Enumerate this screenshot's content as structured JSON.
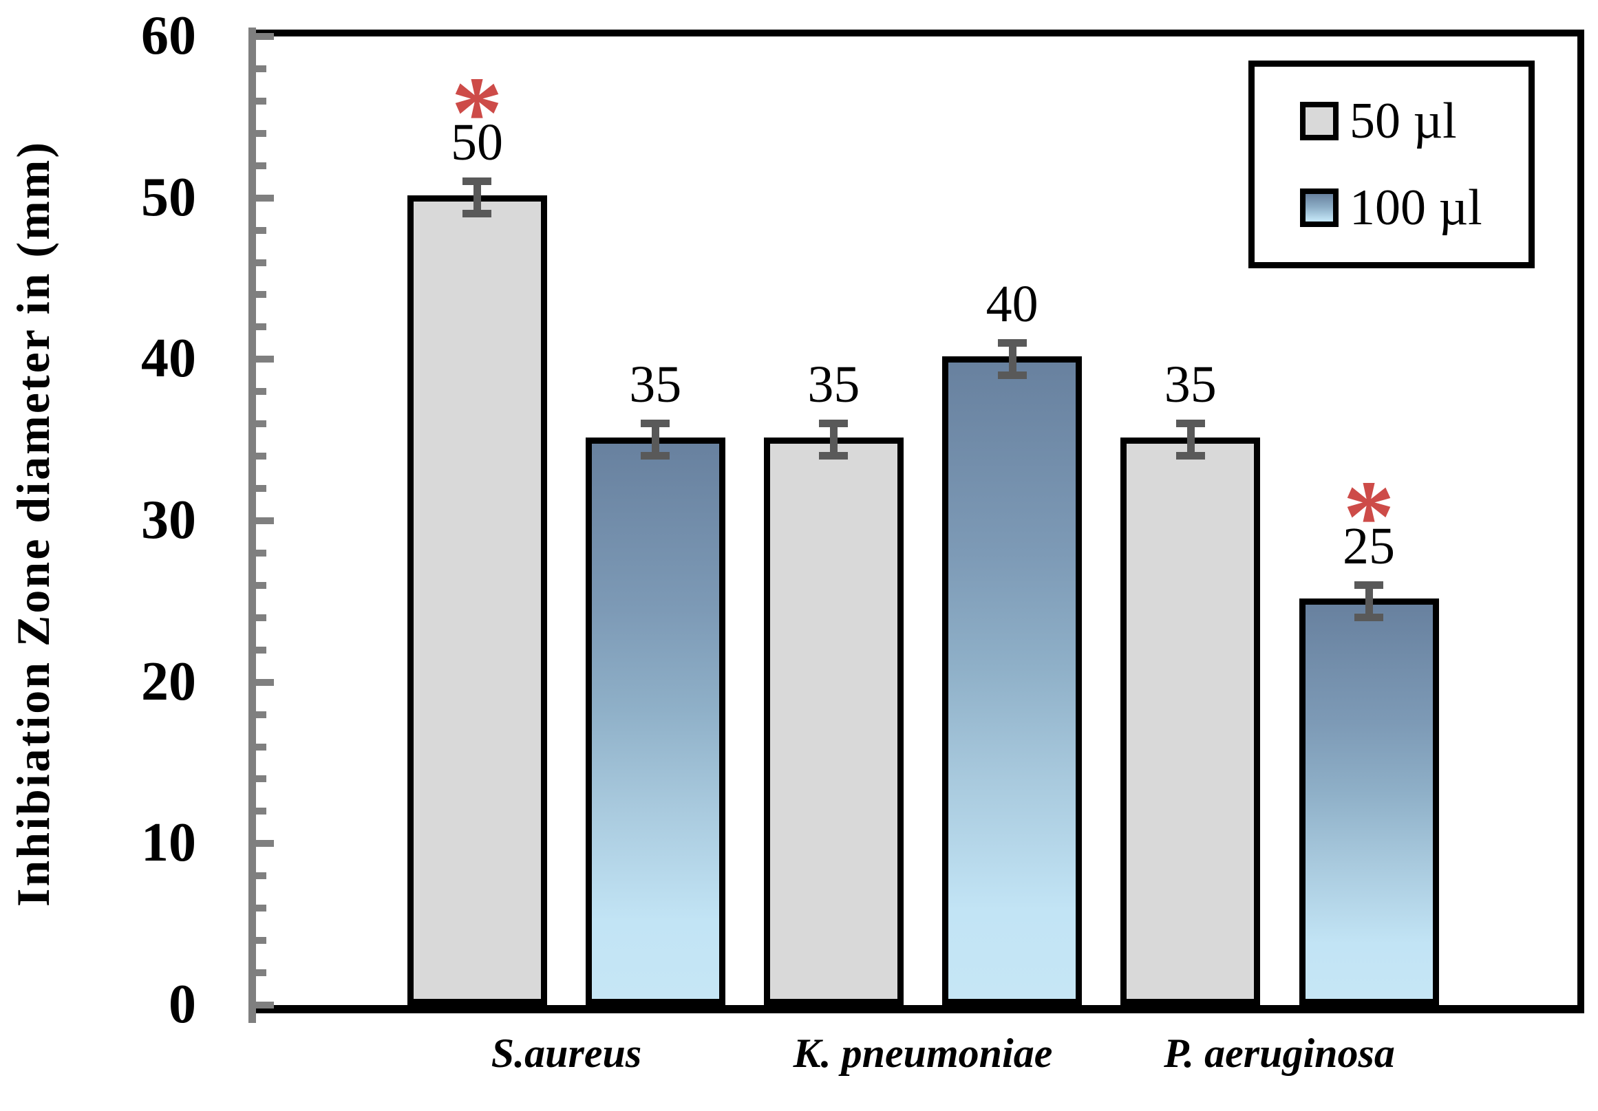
{
  "figure": {
    "background": "#ffffff",
    "frame_color": "#000000",
    "axis_color": "#7f7f7f",
    "bar_border_color": "#000000"
  },
  "chart_data": {
    "type": "bar",
    "title": "",
    "xlabel": "",
    "ylabel": "Inhibiation Zone diameter in (mm)",
    "categories": [
      "S.aureus",
      "K. pneumoniae",
      "P. aeruginosa"
    ],
    "series": [
      {
        "name": "50 µl",
        "values": [
          50,
          35,
          35
        ],
        "fill": "#d9d9d9",
        "significant": [
          true,
          false,
          false
        ]
      },
      {
        "name": "100 µl",
        "values": [
          35,
          40,
          25
        ],
        "fill_gradient": [
          "#68819f",
          "#8fb0c8",
          "#c2e4f5"
        ],
        "significant": [
          false,
          false,
          true
        ]
      }
    ],
    "error_bars": {
      "value": 1,
      "color": "#595959"
    },
    "ylim": [
      0,
      60
    ],
    "yticks": [
      0,
      10,
      20,
      30,
      40,
      50,
      60
    ],
    "minor_tick_step": 2,
    "grid": false,
    "legend": {
      "position": "top-right",
      "entries": [
        "50 µl",
        "100 µl"
      ]
    },
    "significance": {
      "marker": "*",
      "color": "#cd4b48"
    }
  }
}
